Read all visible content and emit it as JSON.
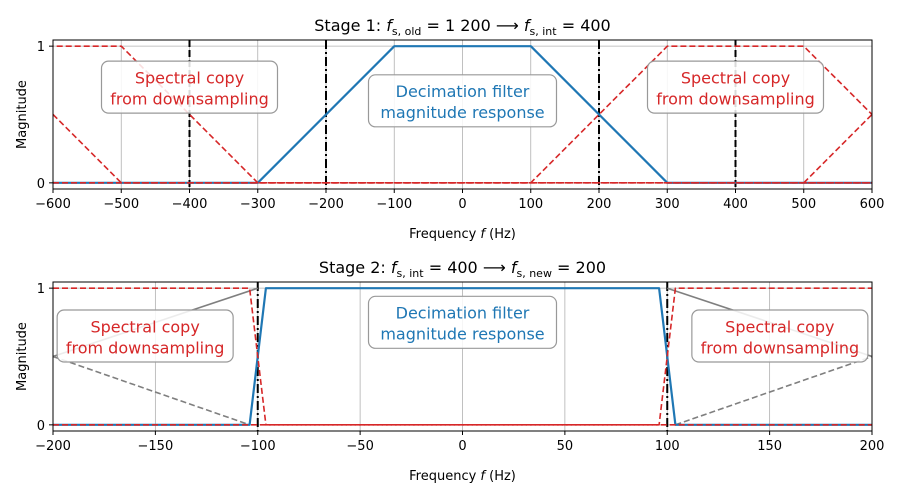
{
  "chart_data": [
    {
      "type": "line",
      "title": "Stage 1: f_s,old = 1 200 ⟶ f_s,int = 400",
      "title_parts": {
        "prefix": "Stage 1: ",
        "a": "f",
        "a_sub": "s, old",
        "a_val": " = 1 200 ⟶ ",
        "b": "f",
        "b_sub": "s, int",
        "b_val": " = 400"
      },
      "xlabel": "Frequency f (Hz)",
      "xlabel_parts": {
        "pre": "Frequency ",
        "var": "f",
        "post": " (Hz)"
      },
      "ylabel": "Magnitude",
      "xlim": [
        -600,
        600
      ],
      "ylim": [
        0,
        1
      ],
      "xticks": [
        -600,
        -500,
        -400,
        -300,
        -200,
        -100,
        0,
        100,
        200,
        300,
        400,
        500,
        600
      ],
      "xtick_labels": [
        "−600",
        "−500",
        "−400",
        "−300",
        "−200",
        "−100",
        "0",
        "100",
        "200",
        "300",
        "400",
        "500",
        "600"
      ],
      "yticks": [
        0,
        1
      ],
      "ytick_labels": [
        "0",
        "1"
      ],
      "grid": true,
      "series": [
        {
          "role": "decimation-filter",
          "color": "#1f77b4",
          "style": "solid",
          "x": [
            -600,
            -300,
            -100,
            100,
            300,
            600
          ],
          "y": [
            0,
            0,
            1,
            1,
            0,
            0
          ]
        },
        {
          "role": "spectral-copy-left",
          "color": "#d62728",
          "style": "dashed",
          "x": [
            -700,
            -500,
            -300,
            -100,
            600
          ],
          "y": [
            1,
            1,
            0,
            0,
            0
          ]
        },
        {
          "role": "spectral-copy-right",
          "color": "#d62728",
          "style": "dashed",
          "x": [
            -600,
            100,
            300,
            500,
            700
          ],
          "y": [
            0,
            0,
            1,
            1,
            0
          ]
        },
        {
          "role": "spectral-copy-far-left",
          "color": "#d62728",
          "style": "dashed",
          "x": [
            -600,
            -500,
            600
          ],
          "y": [
            0.5,
            0,
            0
          ]
        },
        {
          "role": "spectral-copy-far-right",
          "color": "#d62728",
          "style": "dashed",
          "x": [
            500,
            600
          ],
          "y": [
            0,
            0.5
          ]
        }
      ],
      "vlines_dashed": [
        -400,
        400
      ],
      "vlines_dashdot": [
        -200,
        200
      ],
      "annotations": [
        {
          "role": "red-left",
          "lines": [
            "Spectral copy",
            "from downsampling"
          ],
          "x": -400,
          "y": 0.7
        },
        {
          "role": "blue-center",
          "lines": [
            "Decimation filter",
            "magnitude response"
          ],
          "x": 0,
          "y": 0.6
        },
        {
          "role": "red-right",
          "lines": [
            "Spectral copy",
            "from downsampling"
          ],
          "x": 400,
          "y": 0.7
        }
      ]
    },
    {
      "type": "line",
      "title": "Stage 2: f_s,int = 400 ⟶ f_s,new = 200",
      "title_parts": {
        "prefix": "Stage 2: ",
        "a": "f",
        "a_sub": "s, int",
        "a_val": " = 400 ⟶ ",
        "b": "f",
        "b_sub": "s, new",
        "b_val": " = 200"
      },
      "xlabel": "Frequency f (Hz)",
      "xlabel_parts": {
        "pre": "Frequency ",
        "var": "f",
        "post": " (Hz)"
      },
      "ylabel": "Magnitude",
      "xlim": [
        -200,
        200
      ],
      "ylim": [
        0,
        1
      ],
      "xticks": [
        -200,
        -150,
        -100,
        -50,
        0,
        50,
        100,
        150,
        200
      ],
      "xtick_labels": [
        "−200",
        "−150",
        "−100",
        "−50",
        "0",
        "50",
        "100",
        "150",
        "200"
      ],
      "yticks": [
        0,
        1
      ],
      "ytick_labels": [
        "0",
        "1"
      ],
      "grid": true,
      "series": [
        {
          "role": "decimation-filter",
          "color": "#1f77b4",
          "style": "solid",
          "x": [
            -200,
            -104,
            -96,
            96,
            104,
            200
          ],
          "y": [
            0,
            0,
            1,
            1,
            0,
            0
          ]
        },
        {
          "role": "gray-solid-left",
          "color": "#7f7f7f",
          "style": "solid",
          "x": [
            -200,
            -100
          ],
          "y": [
            0.5,
            1
          ]
        },
        {
          "role": "gray-solid-right",
          "color": "#7f7f7f",
          "style": "solid",
          "x": [
            100,
            200
          ],
          "y": [
            1,
            0.5
          ]
        },
        {
          "role": "gray-dashed-left",
          "color": "#7f7f7f",
          "style": "dashed",
          "x": [
            -200,
            -104
          ],
          "y": [
            0.5,
            0
          ]
        },
        {
          "role": "gray-dashed-right",
          "color": "#7f7f7f",
          "style": "dashed",
          "x": [
            104,
            200
          ],
          "y": [
            0,
            0.5
          ]
        },
        {
          "role": "spectral-copy-left",
          "color": "#d62728",
          "style": "dashed",
          "x": [
            -200,
            -104,
            -96,
            200
          ],
          "y": [
            1,
            1,
            0,
            0
          ]
        },
        {
          "role": "spectral-copy-right",
          "color": "#d62728",
          "style": "dashed",
          "x": [
            -200,
            96,
            104,
            200
          ],
          "y": [
            0,
            0,
            1,
            1
          ]
        }
      ],
      "vlines_dashdot": [
        -100,
        100
      ],
      "annotations": [
        {
          "role": "red-left",
          "lines": [
            "Spectral copy",
            "from downsampling"
          ],
          "x": -155,
          "y": 0.65
        },
        {
          "role": "blue-center",
          "lines": [
            "Decimation filter",
            "magnitude response"
          ],
          "x": 0,
          "y": 0.75
        },
        {
          "role": "red-right",
          "lines": [
            "Spectral copy",
            "from downsampling"
          ],
          "x": 155,
          "y": 0.65
        }
      ]
    }
  ]
}
